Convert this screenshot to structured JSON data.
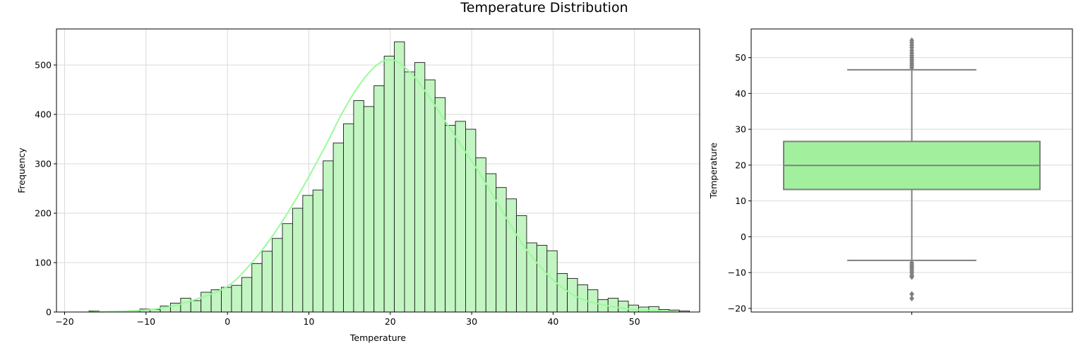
{
  "title": "Temperature Distribution",
  "colors": {
    "bar_fill": "#c2f5c2",
    "bar_edge": "#1a1a1a",
    "kde_line": "#98fb98",
    "box_fill": "#a2f09d",
    "box_edge": "#808080",
    "grid": "#d9d9d9"
  },
  "chart_data": [
    {
      "type": "bar",
      "subtype": "histogram",
      "xlabel": "Temperature",
      "ylabel": "Frequency",
      "xlim": [
        -21,
        58
      ],
      "ylim": [
        0,
        573
      ],
      "xticks": [
        -20,
        -10,
        0,
        10,
        20,
        30,
        40,
        50
      ],
      "xtick_labels": [
        "−20",
        "−10",
        "0",
        "10",
        "20",
        "30",
        "40",
        "50"
      ],
      "yticks": [
        0,
        100,
        200,
        300,
        400,
        500
      ],
      "ytick_labels": [
        "0",
        "100",
        "200",
        "300",
        "400",
        "500"
      ],
      "grid": true,
      "bins_start": -17,
      "bin_width": 1.25,
      "values": [
        2,
        0,
        0,
        0,
        2,
        6,
        5,
        12,
        18,
        28,
        23,
        40,
        45,
        50,
        54,
        70,
        98,
        123,
        149,
        179,
        210,
        236,
        247,
        306,
        342,
        381,
        428,
        416,
        458,
        518,
        547,
        486,
        505,
        470,
        434,
        378,
        386,
        370,
        312,
        280,
        252,
        229,
        195,
        140,
        135,
        124,
        78,
        68,
        55,
        45,
        25,
        28,
        22,
        14,
        10,
        11,
        5,
        4,
        2
      ],
      "kde": {
        "x": [
          -17,
          -12,
          -8,
          -4,
          0,
          3,
          6,
          9,
          12,
          14,
          16,
          18,
          19.5,
          21,
          23,
          25,
          27,
          29,
          31,
          33,
          35,
          37,
          40,
          43,
          46,
          50,
          55
        ],
        "y": [
          0,
          2,
          8,
          25,
          52,
          100,
          165,
          245,
          335,
          400,
          455,
          495,
          510,
          505,
          475,
          430,
          380,
          330,
          280,
          225,
          170,
          120,
          65,
          30,
          15,
          5,
          1
        ]
      }
    },
    {
      "type": "box",
      "ylabel": "Temperature",
      "xlabel": "",
      "ylim": [
        -21,
        58
      ],
      "yticks": [
        -20,
        -10,
        0,
        10,
        20,
        30,
        40,
        50
      ],
      "ytick_labels": [
        "−20",
        "−10",
        "0",
        "10",
        "20",
        "30",
        "40",
        "50"
      ],
      "grid": true,
      "q1": 13.2,
      "median": 19.9,
      "q3": 26.6,
      "whisker_low": -6.6,
      "whisker_high": 46.6,
      "outliers": [
        47.2,
        47.8,
        48.3,
        48.9,
        49.4,
        50.0,
        50.6,
        51.3,
        52.0,
        52.8,
        53.5,
        54.2,
        54.8,
        -7.3,
        -7.9,
        -8.4,
        -8.9,
        -9.5,
        -10.1,
        -10.8,
        -11.2,
        -16.0,
        -17.2
      ]
    }
  ]
}
